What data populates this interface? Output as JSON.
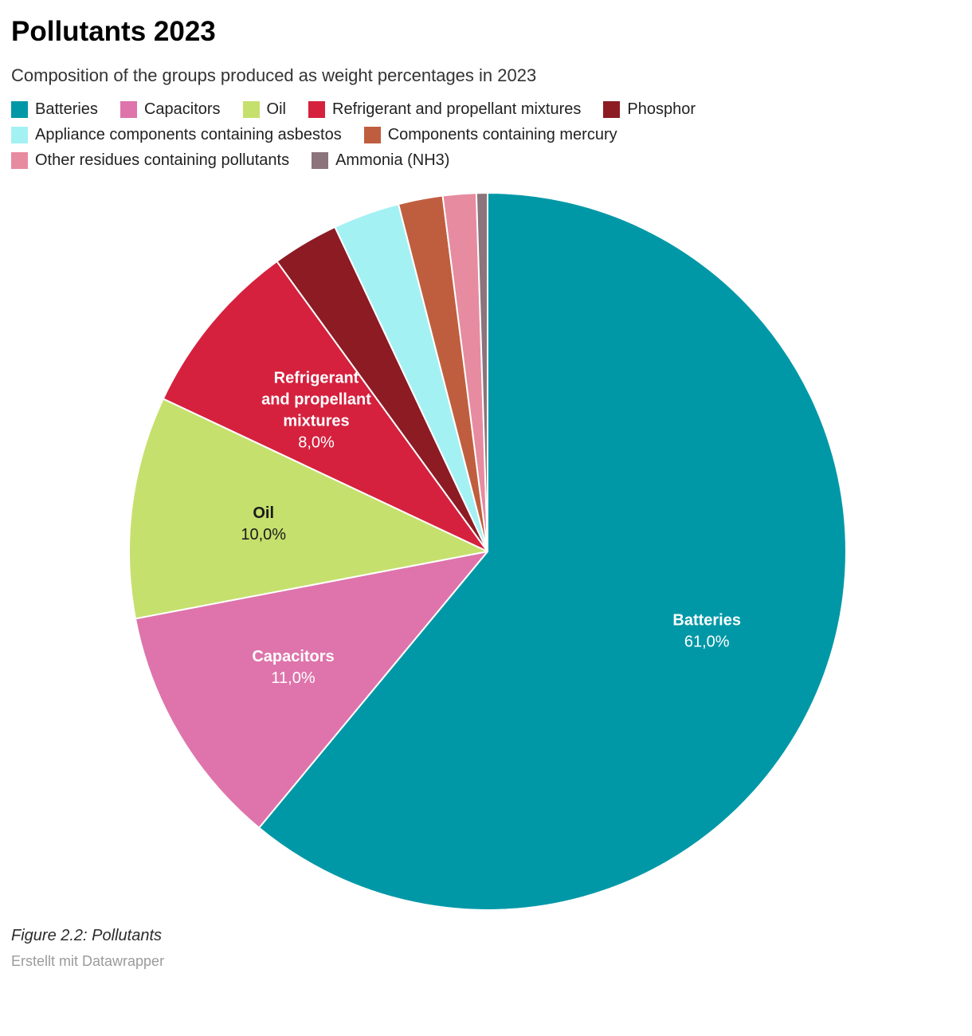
{
  "header": {
    "title": "Pollutants 2023",
    "subtitle": "Composition of the groups produced as weight percentages in 2023"
  },
  "chart_data": {
    "type": "pie",
    "title": "Pollutants 2023",
    "subtitle": "Composition of the groups produced as weight percentages in 2023",
    "unit": "%",
    "start_angle_deg": 0,
    "direction": "clockwise",
    "legend_position": "top",
    "slices": [
      {
        "name": "Batteries",
        "value": 61.0,
        "display": "61,0%",
        "color": "#0098a7",
        "label": {
          "show": true,
          "lines": [
            "Batteries"
          ],
          "text_color": "#ffffff",
          "r_frac": 0.65
        }
      },
      {
        "name": "Capacitors",
        "value": 11.0,
        "display": "11,0%",
        "color": "#de74ab",
        "label": {
          "show": true,
          "lines": [
            "Capacitors"
          ],
          "text_color": "#ffffff",
          "r_frac": 0.63
        }
      },
      {
        "name": "Oil",
        "value": 10.0,
        "display": "10,0%",
        "color": "#c6e06d",
        "label": {
          "show": true,
          "lines": [
            "Oil"
          ],
          "text_color": "#1a1a1a",
          "r_frac": 0.63
        }
      },
      {
        "name": "Refrigerant and propellant mixtures",
        "value": 8.0,
        "display": "8,0%",
        "color": "#d5213e",
        "label": {
          "show": true,
          "lines": [
            "Refrigerant",
            "and propellant",
            "mixtures"
          ],
          "text_color": "#ffffff",
          "r_frac": 0.62
        }
      },
      {
        "name": "Phosphor",
        "value": 3.0,
        "display": "3,0%",
        "color": "#8c1b24",
        "label": {
          "show": false
        }
      },
      {
        "name": "Appliance components containing asbestos",
        "value": 3.0,
        "display": "3,0%",
        "color": "#a4f1f4",
        "label": {
          "show": false
        }
      },
      {
        "name": "Components containing mercury",
        "value": 2.0,
        "display": "2,0%",
        "color": "#bf5e3e",
        "label": {
          "show": false
        }
      },
      {
        "name": "Other residues containing pollutants",
        "value": 1.5,
        "display": "1,5%",
        "color": "#e78ba0",
        "label": {
          "show": false
        }
      },
      {
        "name": "Ammonia (NH3)",
        "value": 0.5,
        "display": "0,5%",
        "color": "#8b747b",
        "label": {
          "show": false
        }
      }
    ]
  },
  "footer": {
    "caption": "Figure 2.2: Pollutants",
    "credit": "Erstellt mit Datawrapper"
  }
}
